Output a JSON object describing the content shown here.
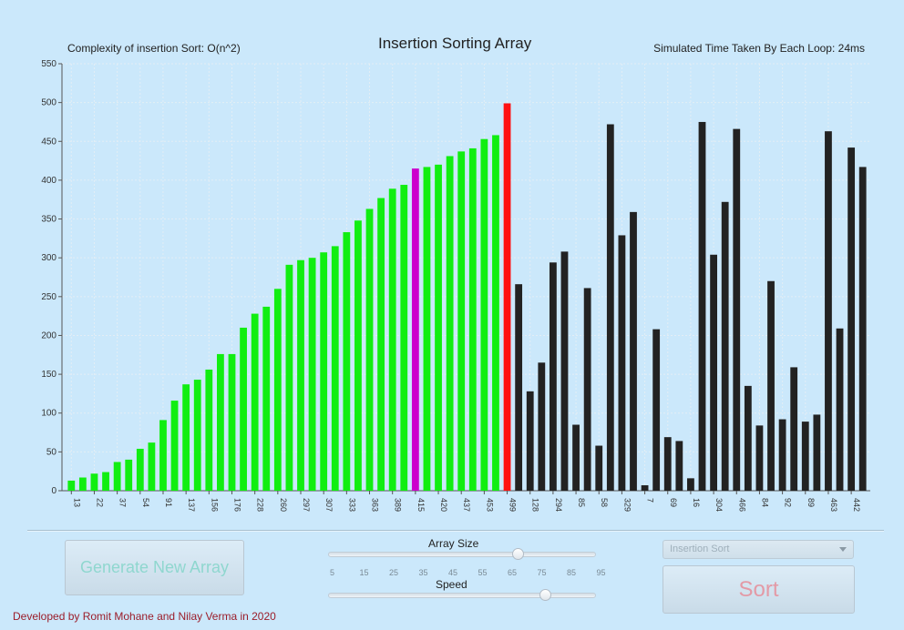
{
  "header": {
    "complexity_text": "Complexity of insertion Sort: O(n^2)",
    "title": "Insertion Sorting Array",
    "time_text": "Simulated Time Taken By Each Loop: 24ms"
  },
  "colors": {
    "sorted": "#11ee11",
    "key": "#cc00cc",
    "current": "#ff1111",
    "unsorted": "#222222",
    "background": "#cbe8fb"
  },
  "chart_data": {
    "type": "bar",
    "ylim": [
      0,
      550
    ],
    "yticks": [
      0,
      50,
      100,
      150,
      200,
      250,
      300,
      350,
      400,
      450,
      500,
      550
    ],
    "values": [
      13,
      17,
      22,
      24,
      37,
      40,
      54,
      62,
      91,
      116,
      137,
      143,
      156,
      176,
      176,
      210,
      228,
      237,
      260,
      291,
      297,
      300,
      307,
      315,
      333,
      348,
      363,
      377,
      389,
      394,
      415,
      417,
      420,
      431,
      437,
      441,
      453,
      458,
      499,
      266,
      128,
      165,
      294,
      308,
      85,
      261,
      58,
      472,
      329,
      359,
      7,
      208,
      69,
      64,
      16,
      475,
      304,
      372,
      466,
      135,
      84,
      270,
      92,
      159,
      89,
      98,
      463,
      209,
      442,
      417
    ],
    "states": [
      "sorted",
      "sorted",
      "sorted",
      "sorted",
      "sorted",
      "sorted",
      "sorted",
      "sorted",
      "sorted",
      "sorted",
      "sorted",
      "sorted",
      "sorted",
      "sorted",
      "sorted",
      "sorted",
      "sorted",
      "sorted",
      "sorted",
      "sorted",
      "sorted",
      "sorted",
      "sorted",
      "sorted",
      "sorted",
      "sorted",
      "sorted",
      "sorted",
      "sorted",
      "sorted",
      "key",
      "sorted",
      "sorted",
      "sorted",
      "sorted",
      "sorted",
      "sorted",
      "sorted",
      "current",
      "unsorted",
      "unsorted",
      "unsorted",
      "unsorted",
      "unsorted",
      "unsorted",
      "unsorted",
      "unsorted",
      "unsorted",
      "unsorted",
      "unsorted",
      "unsorted",
      "unsorted",
      "unsorted",
      "unsorted",
      "unsorted",
      "unsorted",
      "unsorted",
      "unsorted",
      "unsorted",
      "unsorted",
      "unsorted",
      "unsorted",
      "unsorted",
      "unsorted",
      "unsorted",
      "unsorted",
      "unsorted",
      "unsorted",
      "unsorted",
      "unsorted"
    ],
    "xtick_labels": [
      "13",
      "22",
      "37",
      "54",
      "91",
      "137",
      "156",
      "176",
      "228",
      "260",
      "297",
      "307",
      "333",
      "363",
      "389",
      "415",
      "420",
      "437",
      "453",
      "499",
      "128",
      "294",
      "85",
      "58",
      "329",
      "7",
      "69",
      "16",
      "304",
      "466",
      "84",
      "92",
      "89",
      "463",
      "442"
    ],
    "grid": true
  },
  "controls": {
    "generate_label": "Generate New Array",
    "array_size_label": "Array Size",
    "array_size_ticks": [
      "5",
      "15",
      "25",
      "35",
      "45",
      "55",
      "65",
      "75",
      "85",
      "95"
    ],
    "array_size_value": 70,
    "speed_label": "Speed",
    "speed_fraction": 0.83,
    "algorithm_selected": "Insertion Sort",
    "sort_label": "Sort"
  },
  "footer": {
    "credit": "Developed by Romit Mohane and Nilay Verma in 2020"
  }
}
